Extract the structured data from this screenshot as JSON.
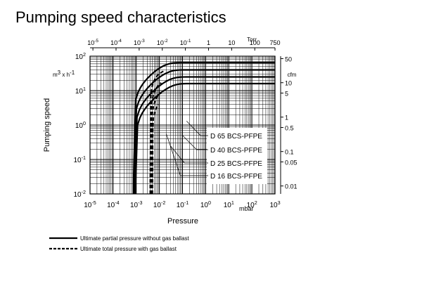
{
  "title": "Pumping speed characteristics",
  "chart_data": {
    "type": "line",
    "title": "Pumping speed characteristics",
    "xlabel": "Pressure",
    "x_unit": "mbar",
    "ylabel": "Pumping speed",
    "y_unit": "m3 x h-1",
    "y_unit_base": "m",
    "y_unit_sup1": "3",
    "y_unit_mid": " x h",
    "y_unit_sup2": "-1",
    "x_scale": "log",
    "y_scale": "log",
    "xlim": [
      1e-05,
      1000
    ],
    "ylim": [
      0.01,
      100
    ],
    "grid": true,
    "x_ticks": [
      {
        "value": 1e-05,
        "base": "10",
        "exp": "-5"
      },
      {
        "value": 0.0001,
        "base": "10",
        "exp": "-4"
      },
      {
        "value": 0.001,
        "base": "10",
        "exp": "-3"
      },
      {
        "value": 0.01,
        "base": "10",
        "exp": "-2"
      },
      {
        "value": 0.1,
        "base": "10",
        "exp": "-1"
      },
      {
        "value": 1,
        "base": "10",
        "exp": "0"
      },
      {
        "value": 10,
        "base": "10",
        "exp": "1"
      },
      {
        "value": 100,
        "base": "10",
        "exp": "2"
      },
      {
        "value": 1000,
        "base": "10",
        "exp": "3"
      }
    ],
    "y_ticks": [
      {
        "value": 100,
        "base": "10",
        "exp": "2"
      },
      {
        "value": 10,
        "base": "10",
        "exp": "1"
      },
      {
        "value": 1,
        "base": "10",
        "exp": "0"
      },
      {
        "value": 0.1,
        "base": "10",
        "exp": "-1"
      },
      {
        "value": 0.01,
        "base": "10",
        "exp": "-2"
      }
    ],
    "top_axis": {
      "unit": "Torr",
      "ticks": [
        {
          "value": 1e-05,
          "base": "10",
          "exp": "-5"
        },
        {
          "value": 0.0001,
          "base": "10",
          "exp": "-4"
        },
        {
          "value": 0.001,
          "base": "10",
          "exp": "-3"
        },
        {
          "value": 0.01,
          "base": "10",
          "exp": "-2"
        },
        {
          "value": 0.1,
          "base": "10",
          "exp": "-1"
        },
        {
          "value": 1,
          "base": "1",
          "exp": ""
        },
        {
          "value": 10,
          "base": "10",
          "exp": ""
        },
        {
          "value": 100,
          "base": "100",
          "exp": ""
        },
        {
          "value": 750,
          "base": "750",
          "exp": ""
        }
      ]
    },
    "right_axis": {
      "unit": "cfm",
      "ticks": [
        {
          "value": 50,
          "label": "50"
        },
        {
          "value": 10,
          "label": "10"
        },
        {
          "value": 5,
          "label": "5"
        },
        {
          "value": 1,
          "label": "1"
        },
        {
          "value": 0.5,
          "label": "0.5"
        },
        {
          "value": 0.1,
          "label": "0.1"
        },
        {
          "value": 0.05,
          "label": "0.05"
        },
        {
          "value": 0.01,
          "label": "0.01"
        }
      ]
    },
    "series": [
      {
        "name": "D 65 BCS-PFPE",
        "ultimate_partial": 0.00075,
        "ultimate_total": 0.004,
        "plateau": 65,
        "gb_peak_x": 0.015,
        "gb_peak_y": 40,
        "callout_x": 0.15,
        "callout_y": 1.3
      },
      {
        "name": "D 40 BCS-PFPE",
        "ultimate_partial": 0.0008,
        "ultimate_total": 0.0043,
        "plateau": 40,
        "gb_peak_x": 0.012,
        "gb_peak_y": 22,
        "callout_x": 0.1,
        "callout_y": 0.5
      },
      {
        "name": "D 25 BCS-PFPE",
        "ultimate_partial": 0.00085,
        "ultimate_total": 0.0046,
        "plateau": 25,
        "gb_peak_x": 0.01,
        "gb_peak_y": 13,
        "callout_x": 0.03,
        "callout_y": 0.25
      },
      {
        "name": "D 16 BCS-PFPE",
        "ultimate_partial": 0.0009,
        "ultimate_total": 0.005,
        "plateau": 16,
        "gb_peak_x": 0.009,
        "gb_peak_y": 8,
        "callout_x": 0.02,
        "callout_y": 0.55
      }
    ],
    "legend": {
      "placement": "bottom-left",
      "entries": [
        {
          "label": "Ultimate partial pressure without gas ballast",
          "style": "solid"
        },
        {
          "label": "Ultimate total pressure with gas ballast",
          "style": "dashed"
        }
      ]
    }
  }
}
